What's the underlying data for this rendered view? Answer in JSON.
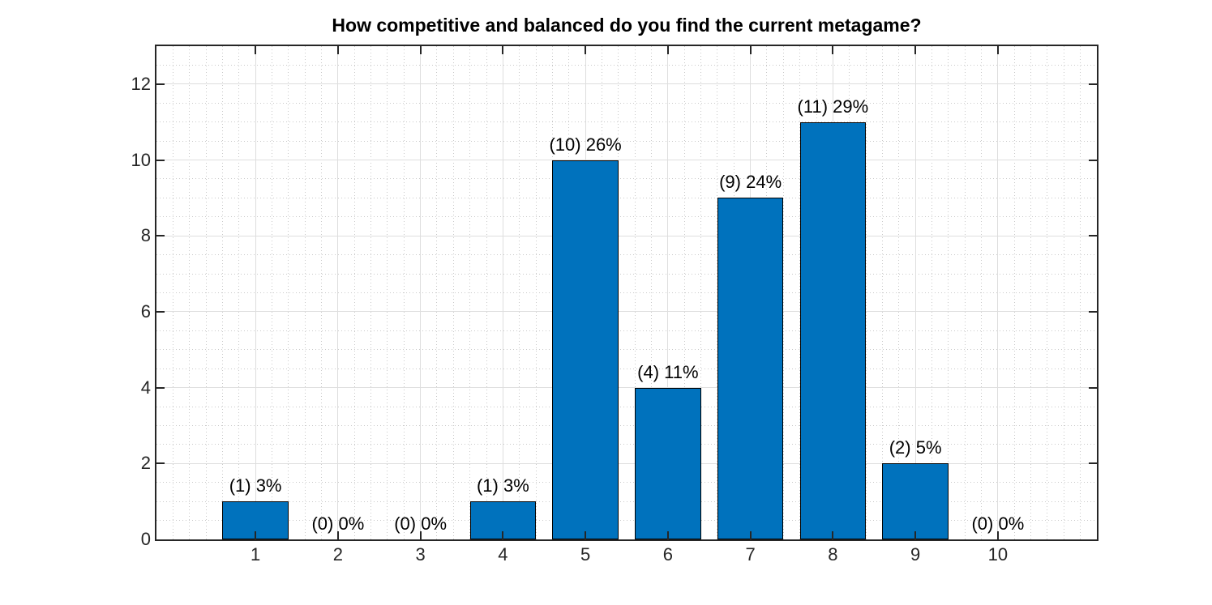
{
  "chart_data": {
    "type": "bar",
    "title": "How competitive and balanced do you find the current metagame?",
    "categories": [
      "1",
      "2",
      "3",
      "4",
      "5",
      "6",
      "7",
      "8",
      "9",
      "10"
    ],
    "values": [
      1,
      0,
      0,
      1,
      10,
      4,
      9,
      11,
      2,
      0
    ],
    "counts": [
      1,
      0,
      0,
      1,
      10,
      4,
      9,
      11,
      2,
      0
    ],
    "percentages": [
      "3%",
      "0%",
      "0%",
      "3%",
      "26%",
      "11%",
      "24%",
      "29%",
      "5%",
      "0%"
    ],
    "bar_labels": [
      "(1) 3%",
      "(0) 0%",
      "(0) 0%",
      "(1) 3%",
      "(10) 26%",
      "(4) 11%",
      "(9) 24%",
      "(11) 29%",
      "(2) 5%",
      "(0) 0%"
    ],
    "xlabel": "",
    "ylabel": "",
    "y_ticks": [
      0,
      2,
      4,
      6,
      8,
      10,
      12
    ],
    "y_tick_labels": [
      "0",
      "2",
      "4",
      "6",
      "8",
      "10",
      "12"
    ],
    "ylim": [
      0,
      13
    ],
    "xlim": [
      -0.2,
      11.2
    ],
    "bar_width_units": 0.8,
    "minor_x_step": 0.2,
    "minor_y_step": 0.5,
    "grid": "major solid + minor dotted",
    "legend_position": "none",
    "colors": {
      "bar_fill": "#0072BD",
      "bar_edge": "#000000",
      "axis_box": "#262626",
      "major_grid": "#dedede",
      "minor_grid": "#c9c9c9",
      "tick_label": "#262626",
      "title_text": "#000000",
      "background": "#ffffff"
    }
  }
}
